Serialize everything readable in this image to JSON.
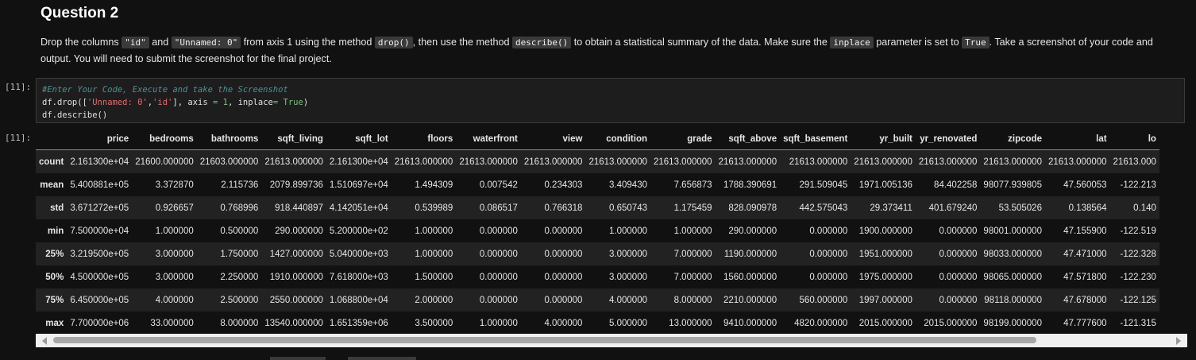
{
  "heading": "Question 2",
  "instructions": {
    "p1": "Drop the columns ",
    "c1": "\"id\"",
    "p2": " and ",
    "c2": "\"Unnamed: 0\"",
    "p3": " from axis 1 using the method ",
    "c3": "drop()",
    "p4": ", then use the method ",
    "c4": "describe()",
    "p5": " to obtain a statistical summary of the data. Make sure the ",
    "c5": "inplace",
    "p6": " parameter is set to ",
    "c6": "True",
    "p7": ". Take a screenshot of your code and output. You will need to submit the screenshot for the final project."
  },
  "input_prompt": "[11]:",
  "output_prompt": "[11]:",
  "code": {
    "comment": "#Enter Your Code, Execute and take the Screenshot",
    "line2_a": "df.drop([",
    "line2_s1": "'Unnamed: 0'",
    "line2_b": ",",
    "line2_s2": "'id'",
    "line2_c": "], axis ",
    "line2_eq": "=",
    "line2_d": " ",
    "line2_one": "1",
    "line2_e": ", inplace",
    "line2_eq2": "=",
    "line2_f": " ",
    "line2_true": "True",
    "line2_g": ")",
    "line3": "df.describe()"
  },
  "table": {
    "columns": [
      "price",
      "bedrooms",
      "bathrooms",
      "sqft_living",
      "sqft_lot",
      "floors",
      "waterfront",
      "view",
      "condition",
      "grade",
      "sqft_above",
      "sqft_basement",
      "yr_built",
      "yr_renovated",
      "zipcode",
      "lat",
      "lo"
    ],
    "rows": [
      {
        "label": "count",
        "cells": [
          "2.161300e+04",
          "21600.000000",
          "21603.000000",
          "21613.000000",
          "2.161300e+04",
          "21613.000000",
          "21613.000000",
          "21613.000000",
          "21613.000000",
          "21613.000000",
          "21613.000000",
          "21613.000000",
          "21613.000000",
          "21613.000000",
          "21613.000000",
          "21613.000000",
          "21613.000"
        ]
      },
      {
        "label": "mean",
        "cells": [
          "5.400881e+05",
          "3.372870",
          "2.115736",
          "2079.899736",
          "1.510697e+04",
          "1.494309",
          "0.007542",
          "0.234303",
          "3.409430",
          "7.656873",
          "1788.390691",
          "291.509045",
          "1971.005136",
          "84.402258",
          "98077.939805",
          "47.560053",
          "-122.213"
        ]
      },
      {
        "label": "std",
        "cells": [
          "3.671272e+05",
          "0.926657",
          "0.768996",
          "918.440897",
          "4.142051e+04",
          "0.539989",
          "0.086517",
          "0.766318",
          "0.650743",
          "1.175459",
          "828.090978",
          "442.575043",
          "29.373411",
          "401.679240",
          "53.505026",
          "0.138564",
          "0.140"
        ]
      },
      {
        "label": "min",
        "cells": [
          "7.500000e+04",
          "1.000000",
          "0.500000",
          "290.000000",
          "5.200000e+02",
          "1.000000",
          "0.000000",
          "0.000000",
          "1.000000",
          "1.000000",
          "290.000000",
          "0.000000",
          "1900.000000",
          "0.000000",
          "98001.000000",
          "47.155900",
          "-122.519"
        ]
      },
      {
        "label": "25%",
        "cells": [
          "3.219500e+05",
          "3.000000",
          "1.750000",
          "1427.000000",
          "5.040000e+03",
          "1.000000",
          "0.000000",
          "0.000000",
          "3.000000",
          "7.000000",
          "1190.000000",
          "0.000000",
          "1951.000000",
          "0.000000",
          "98033.000000",
          "47.471000",
          "-122.328"
        ]
      },
      {
        "label": "50%",
        "cells": [
          "4.500000e+05",
          "3.000000",
          "2.250000",
          "1910.000000",
          "7.618000e+03",
          "1.500000",
          "0.000000",
          "0.000000",
          "3.000000",
          "7.000000",
          "1560.000000",
          "0.000000",
          "1975.000000",
          "0.000000",
          "98065.000000",
          "47.571800",
          "-122.230"
        ]
      },
      {
        "label": "75%",
        "cells": [
          "6.450000e+05",
          "4.000000",
          "2.500000",
          "2550.000000",
          "1.068800e+04",
          "2.000000",
          "0.000000",
          "0.000000",
          "4.000000",
          "8.000000",
          "2210.000000",
          "560.000000",
          "1997.000000",
          "0.000000",
          "98118.000000",
          "47.678000",
          "-122.125"
        ]
      },
      {
        "label": "max",
        "cells": [
          "7.700000e+06",
          "33.000000",
          "8.000000",
          "13540.000000",
          "1.651359e+06",
          "3.500000",
          "1.000000",
          "4.000000",
          "5.000000",
          "13.000000",
          "9410.000000",
          "4820.000000",
          "2015.000000",
          "2015.000000",
          "98199.000000",
          "47.777600",
          "-121.315"
        ]
      }
    ]
  }
}
